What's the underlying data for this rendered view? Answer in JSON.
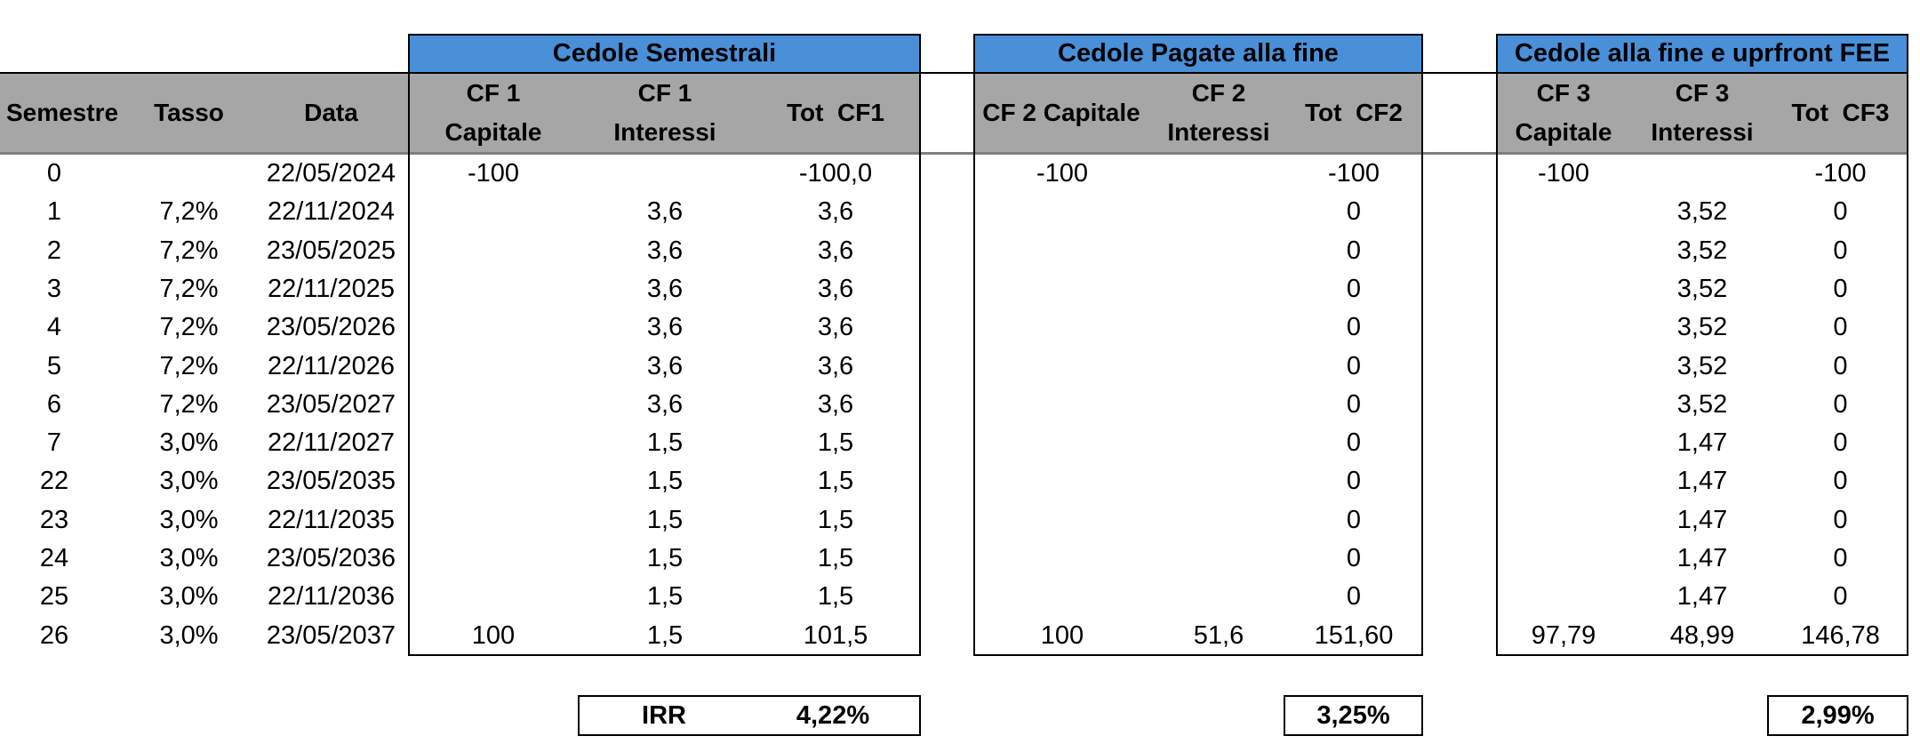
{
  "groups": [
    {
      "title": "Cedole Semestrali"
    },
    {
      "title": "Cedole Pagate alla fine"
    },
    {
      "title": "Cedole alla fine e uprfront FEE"
    }
  ],
  "headers": {
    "semestre": "Semestre",
    "tasso": "Tasso",
    "data": "Data",
    "cf1_cap": [
      "CF 1",
      "Capitale"
    ],
    "cf1_int": [
      "CF 1",
      "Interessi"
    ],
    "cf1_tot": "Tot  CF1",
    "cf2_cap": "CF 2 Capitale",
    "cf2_int": [
      "CF 2",
      "Interessi"
    ],
    "cf2_tot": "Tot  CF2",
    "cf3_cap": [
      "CF 3",
      "Capitale"
    ],
    "cf3_int": [
      "CF 3",
      "Interessi"
    ],
    "cf3_tot": "Tot  CF3"
  },
  "rows": [
    [
      "0",
      "",
      "22/05/2024",
      "-100",
      "",
      "-100,0",
      "-100",
      "",
      "-100",
      "-100",
      "",
      "-100"
    ],
    [
      "1",
      "7,2%",
      "22/11/2024",
      "",
      "3,6",
      "3,6",
      "",
      "",
      "0",
      "",
      "3,52",
      "0"
    ],
    [
      "2",
      "7,2%",
      "23/05/2025",
      "",
      "3,6",
      "3,6",
      "",
      "",
      "0",
      "",
      "3,52",
      "0"
    ],
    [
      "3",
      "7,2%",
      "22/11/2025",
      "",
      "3,6",
      "3,6",
      "",
      "",
      "0",
      "",
      "3,52",
      "0"
    ],
    [
      "4",
      "7,2%",
      "23/05/2026",
      "",
      "3,6",
      "3,6",
      "",
      "",
      "0",
      "",
      "3,52",
      "0"
    ],
    [
      "5",
      "7,2%",
      "22/11/2026",
      "",
      "3,6",
      "3,6",
      "",
      "",
      "0",
      "",
      "3,52",
      "0"
    ],
    [
      "6",
      "7,2%",
      "23/05/2027",
      "",
      "3,6",
      "3,6",
      "",
      "",
      "0",
      "",
      "3,52",
      "0"
    ],
    [
      "7",
      "3,0%",
      "22/11/2027",
      "",
      "1,5",
      "1,5",
      "",
      "",
      "0",
      "",
      "1,47",
      "0"
    ],
    [
      "22",
      "3,0%",
      "23/05/2035",
      "",
      "1,5",
      "1,5",
      "",
      "",
      "0",
      "",
      "1,47",
      "0"
    ],
    [
      "23",
      "3,0%",
      "22/11/2035",
      "",
      "1,5",
      "1,5",
      "",
      "",
      "0",
      "",
      "1,47",
      "0"
    ],
    [
      "24",
      "3,0%",
      "23/05/2036",
      "",
      "1,5",
      "1,5",
      "",
      "",
      "0",
      "",
      "1,47",
      "0"
    ],
    [
      "25",
      "3,0%",
      "22/11/2036",
      "",
      "1,5",
      "1,5",
      "",
      "",
      "0",
      "",
      "1,47",
      "0"
    ],
    [
      "26",
      "3,0%",
      "23/05/2037",
      "100",
      "1,5",
      "101,5",
      "100",
      "51,6",
      "151,60",
      "97,79",
      "48,99",
      "146,78"
    ]
  ],
  "irr": {
    "label": "IRR",
    "cf1": "4,22%",
    "cf2": "3,25%",
    "cf3": "2,99%"
  }
}
